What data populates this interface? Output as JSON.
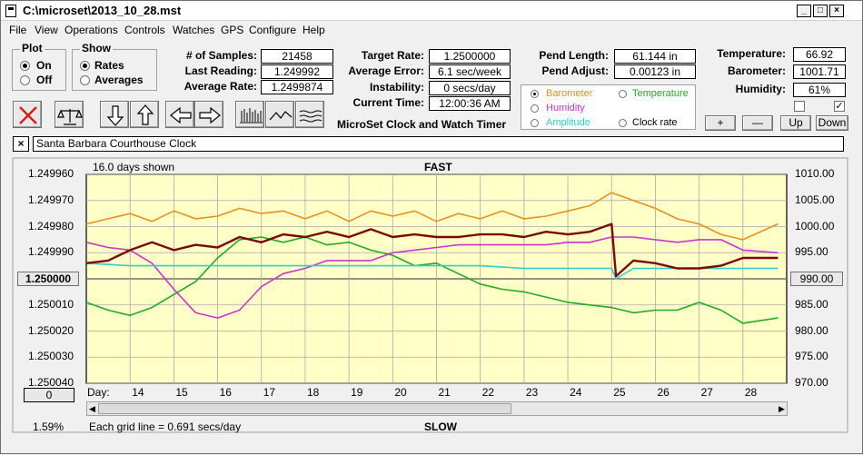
{
  "window": {
    "title": "C:\\microset\\2013_10_28.mst"
  },
  "menu": [
    "File",
    "View",
    "Operations",
    "Controls",
    "Watches",
    "GPS",
    "Configure",
    "Help"
  ],
  "plot_group": {
    "title": "Plot",
    "options": [
      "On",
      "Off"
    ],
    "selected": "On"
  },
  "show_group": {
    "title": "Show",
    "options": [
      "Rates",
      "Averages"
    ],
    "selected": "Rates"
  },
  "stats": {
    "samples_label": "# of Samples:",
    "samples": "21458",
    "last_label": "Last Reading:",
    "last": "1.249992",
    "avg_rate_label": "Average Rate:",
    "avg_rate": "1.2499874",
    "target_label": "Target Rate:",
    "target": "1.2500000",
    "avg_err_label": "Average Error:",
    "avg_err": "6.1 sec/week",
    "instab_label": "Instability:",
    "instab": "0 secs/day",
    "time_label": "Current Time:",
    "time": "12:00:36 AM",
    "pend_len_label": "Pend Length:",
    "pend_len": "61.144 in",
    "pend_adj_label": "Pend Adjust:",
    "pend_adj": "0.00123 in",
    "temp_label": "Temperature:",
    "temp": "66.92",
    "baro_label": "Barometer:",
    "baro": "1001.71",
    "hum_label": "Humidity:",
    "hum": "61%"
  },
  "app_caption": "MicroSet Clock and Watch Timer",
  "sensor_select": {
    "options": [
      {
        "label": "Barometer",
        "color": "#e8901c"
      },
      {
        "label": "Temperature",
        "color": "#22aa22"
      },
      {
        "label": "Humidity",
        "color": "#cc33cc"
      },
      {
        "label": "Clock rate",
        "color": "#000000"
      },
      {
        "label": "Amplitude",
        "color": "#33cccc"
      }
    ],
    "selected": "Barometer"
  },
  "adjust_buttons": [
    "+",
    "—",
    "Up",
    "Down"
  ],
  "clock_name": "Santa Barbara Courthouse Clock",
  "chart": {
    "days_shown": "16.0 days shown",
    "top_label": "FAST",
    "bottom_label": "SLOW",
    "left_ticks": [
      "1.249960",
      "1.249970",
      "1.249980",
      "1.249990",
      "1.250000",
      "1.250010",
      "1.250020",
      "1.250030",
      "1.250040"
    ],
    "right_ticks": [
      "1010.00",
      "1005.00",
      "1000.00",
      "995.00",
      "990.00",
      "985.00",
      "980.00",
      "975.00",
      "970.00"
    ],
    "day_label": "Day:",
    "days": [
      "14",
      "15",
      "16",
      "17",
      "18",
      "19",
      "20",
      "21",
      "22",
      "23",
      "24",
      "25",
      "26",
      "27",
      "28"
    ],
    "grid_note": "Each grid line = 0.691 secs/day",
    "percent": "1.59%",
    "zero_button": "0"
  },
  "chart_data": {
    "type": "line",
    "xlabel": "Day:",
    "x_ticks": [
      "14",
      "15",
      "16",
      "17",
      "18",
      "19",
      "20",
      "21",
      "22",
      "23",
      "24",
      "25",
      "26",
      "27",
      "28"
    ],
    "ylim_left": [
      1.25004,
      1.24996
    ],
    "ylim_right": [
      970.0,
      1010.0
    ],
    "grid": true,
    "series": [
      {
        "color": "#e8901c",
        "axis": "right",
        "x": [
          13.0,
          13.5,
          14.0,
          14.5,
          15.0,
          15.5,
          16.0,
          16.5,
          17.0,
          17.5,
          18.0,
          18.5,
          19.0,
          19.5,
          20.0,
          20.5,
          21.0,
          21.5,
          22.0,
          22.5,
          23.0,
          23.5,
          24.0,
          24.5,
          25.0,
          25.5,
          26.0,
          26.5,
          27.0,
          27.5,
          28.0,
          28.8
        ],
        "values": [
          1000.5,
          1001.5,
          1002.5,
          1001.0,
          1003.0,
          1001.5,
          1002.0,
          1003.5,
          1002.5,
          1003.0,
          1001.5,
          1003.0,
          1001.0,
          1003.0,
          1002.0,
          1003.0,
          1001.0,
          1002.5,
          1001.5,
          1003.0,
          1001.5,
          1002.0,
          1003.0,
          1004.0,
          1006.5,
          1005.0,
          1003.5,
          1001.5,
          1000.5,
          998.5,
          997.5,
          1000.5
        ]
      },
      {
        "color": "#22aa22",
        "axis": "right",
        "x": [
          13.0,
          13.5,
          14.0,
          14.5,
          15.0,
          15.5,
          16.0,
          16.5,
          17.0,
          17.5,
          18.0,
          18.5,
          19.0,
          19.5,
          20.0,
          20.5,
          21.0,
          21.5,
          22.0,
          22.5,
          23.0,
          23.5,
          24.0,
          24.5,
          25.0,
          25.5,
          26.0,
          26.5,
          27.0,
          27.5,
          28.0,
          28.8
        ],
        "values": [
          985.5,
          984.0,
          983.0,
          984.5,
          987.0,
          989.5,
          994.0,
          997.5,
          998.0,
          997.0,
          998.0,
          996.5,
          997.0,
          995.5,
          994.5,
          992.5,
          993.0,
          991.0,
          989.0,
          988.0,
          987.5,
          986.5,
          985.5,
          985.0,
          984.5,
          983.5,
          984.0,
          984.0,
          985.5,
          984.0,
          981.5,
          982.5
        ]
      },
      {
        "color": "#cc33cc",
        "axis": "right",
        "x": [
          13.0,
          13.5,
          14.0,
          14.5,
          15.0,
          15.5,
          16.0,
          16.5,
          17.0,
          17.5,
          18.0,
          18.5,
          19.0,
          19.5,
          20.0,
          20.5,
          21.0,
          21.5,
          22.0,
          22.5,
          23.0,
          23.5,
          24.0,
          24.5,
          25.0,
          25.5,
          26.0,
          26.5,
          27.0,
          27.5,
          28.0,
          28.8
        ],
        "values": [
          997.0,
          996.0,
          995.5,
          993.0,
          988.0,
          983.5,
          982.5,
          984.0,
          988.5,
          991.0,
          992.0,
          993.5,
          993.5,
          993.5,
          995.0,
          995.5,
          996.0,
          996.5,
          996.5,
          996.5,
          996.5,
          996.5,
          997.0,
          997.0,
          998.0,
          998.0,
          997.5,
          997.0,
          997.5,
          997.5,
          995.5,
          995.0
        ]
      },
      {
        "color": "#33cccc",
        "axis": "left",
        "x": [
          13.0,
          14.0,
          15.0,
          16.0,
          17.0,
          18.0,
          19.0,
          20.0,
          21.0,
          22.0,
          23.0,
          24.0,
          25.0,
          25.1,
          25.5,
          26.0,
          27.0,
          28.0,
          28.8
        ],
        "values": [
          1.249994,
          1.249995,
          1.249995,
          1.249995,
          1.249995,
          1.249995,
          1.249995,
          1.249995,
          1.249995,
          1.249995,
          1.249996,
          1.249996,
          1.249996,
          1.25,
          1.249996,
          1.249996,
          1.249996,
          1.249996,
          1.249996
        ]
      },
      {
        "color": "#7a0a0a",
        "axis": "left",
        "x": [
          13.0,
          13.5,
          14.0,
          14.5,
          15.0,
          15.5,
          16.0,
          16.5,
          17.0,
          17.5,
          18.0,
          18.5,
          19.0,
          19.5,
          20.0,
          20.5,
          21.0,
          21.5,
          22.0,
          22.5,
          23.0,
          23.5,
          24.0,
          24.5,
          25.0,
          25.1,
          25.5,
          26.0,
          26.5,
          27.0,
          27.5,
          28.0,
          28.8
        ],
        "values": [
          1.249994,
          1.249993,
          1.249989,
          1.249986,
          1.249989,
          1.249987,
          1.249988,
          1.249984,
          1.249986,
          1.249983,
          1.249984,
          1.249982,
          1.249984,
          1.249981,
          1.249984,
          1.249983,
          1.249984,
          1.249984,
          1.249983,
          1.249983,
          1.249984,
          1.249982,
          1.249983,
          1.249982,
          1.249979,
          1.249999,
          1.249993,
          1.249994,
          1.249996,
          1.249996,
          1.249995,
          1.249992,
          1.249992
        ]
      }
    ]
  }
}
